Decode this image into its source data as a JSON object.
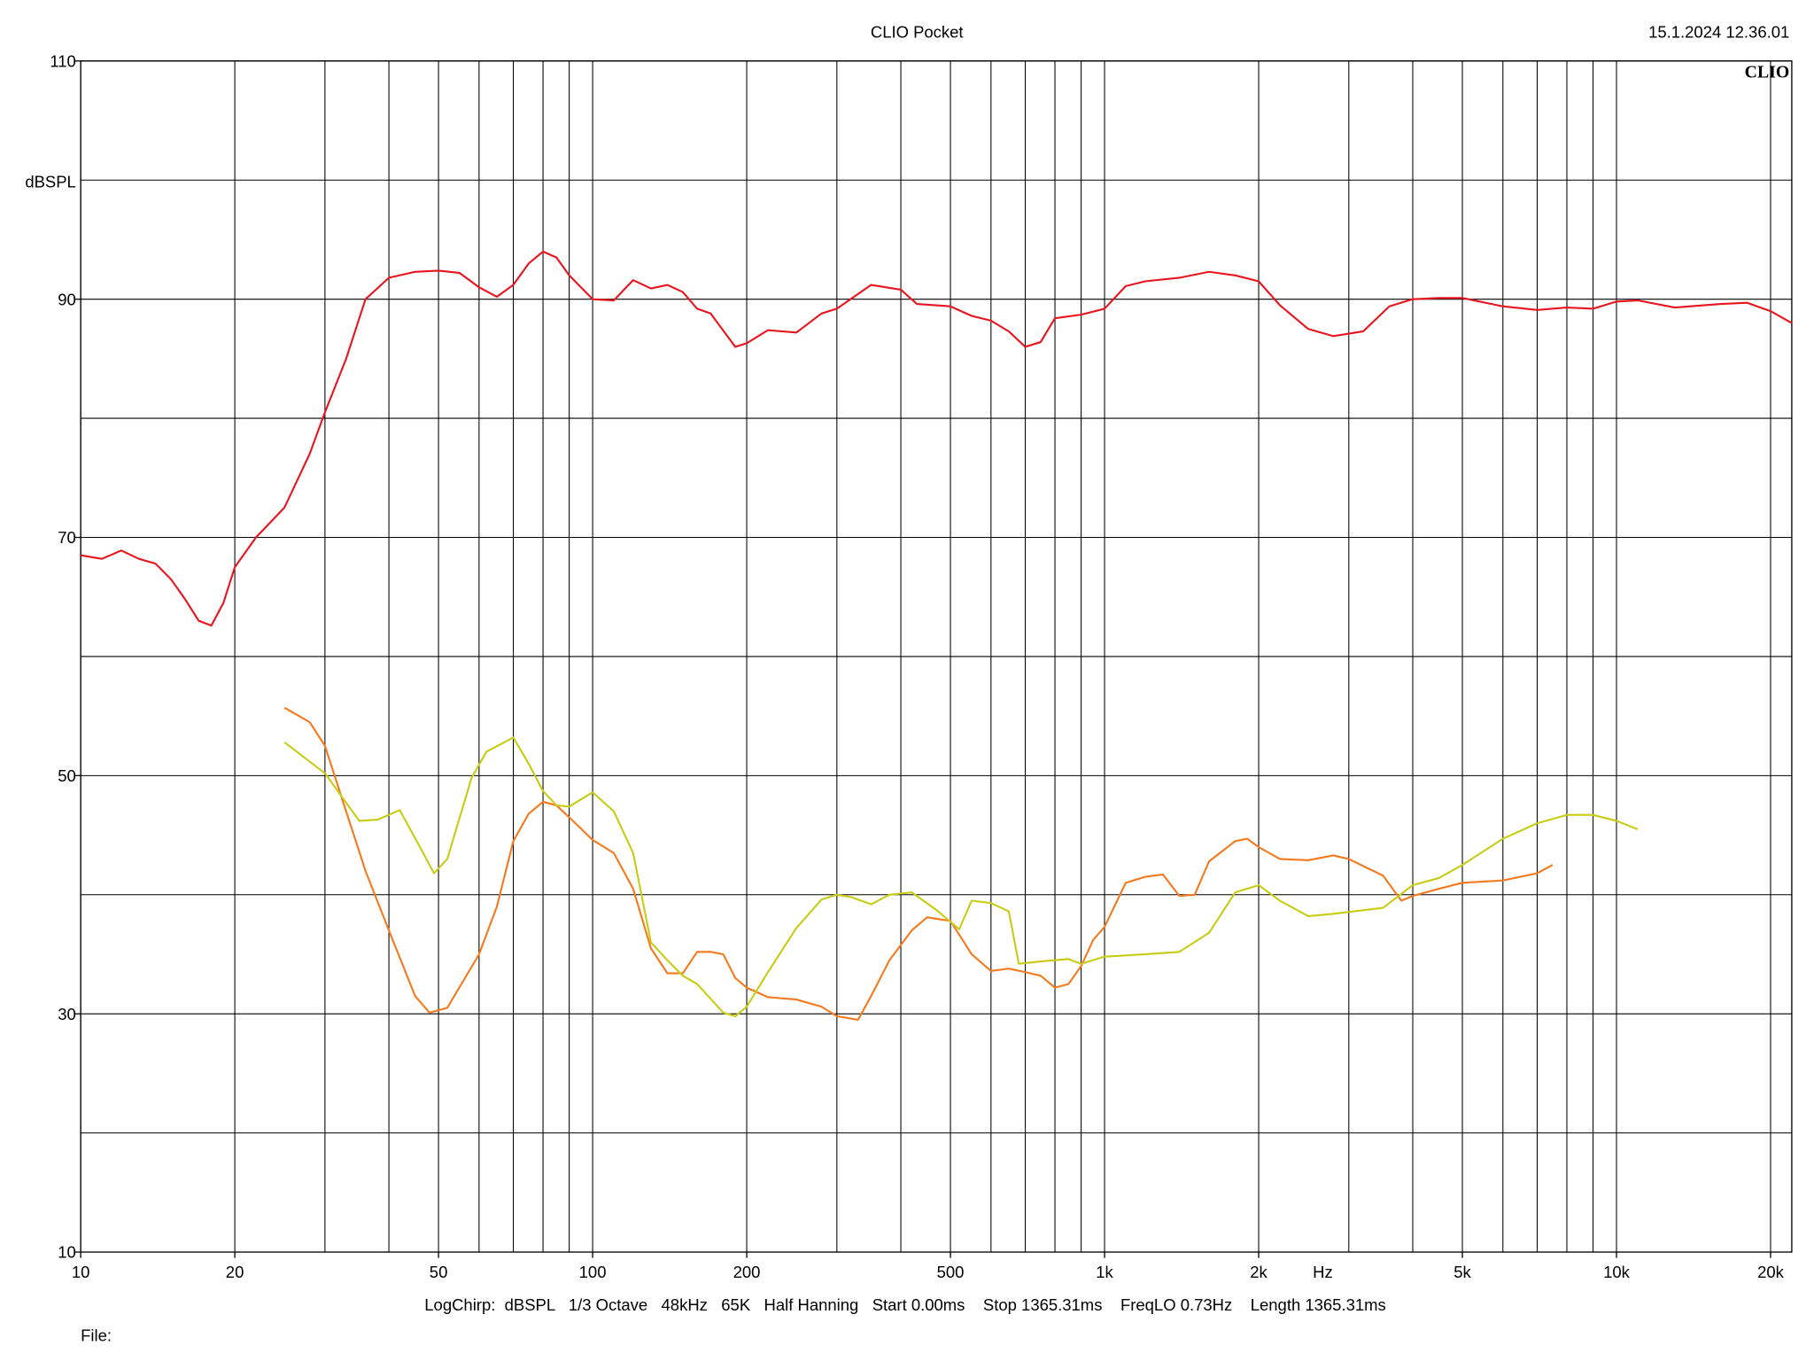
{
  "chart_data": {
    "type": "line",
    "title": "CLIO Pocket",
    "timestamp": "15.1.2024 12.36.01",
    "logo": "CLIO",
    "y_label": "dBSPL",
    "x_label": "Hz",
    "footer": "LogChirp:  dBSPL   1/3 Octave   48kHz   65K   Half Hanning   Start 0.00ms    Stop 1365.31ms    FreqLO 0.73Hz    Length 1365.31ms",
    "file_label": "File:",
    "log_x": true,
    "xlim": [
      10,
      22000
    ],
    "ylim": [
      10,
      110
    ],
    "xticks": [
      10,
      20,
      50,
      100,
      200,
      500,
      {
        "value": 1000,
        "label": "1k"
      },
      {
        "value": 2000,
        "label": "2k"
      },
      {
        "value": 5000,
        "label": "5k"
      },
      {
        "value": 10000,
        "label": "10k"
      },
      {
        "value": 20000,
        "label": "20k"
      }
    ],
    "yticks": [
      10,
      30,
      50,
      70,
      90,
      110
    ],
    "xgrid": [
      10,
      20,
      30,
      40,
      50,
      60,
      70,
      80,
      90,
      100,
      200,
      300,
      400,
      500,
      600,
      700,
      800,
      900,
      1000,
      2000,
      3000,
      4000,
      5000,
      6000,
      7000,
      8000,
      9000,
      10000,
      20000
    ],
    "ygrid": [
      10,
      20,
      30,
      40,
      50,
      60,
      70,
      80,
      90,
      100,
      110
    ],
    "series": [
      {
        "color": "#e8141e",
        "x": [
          10,
          11,
          12,
          13,
          14,
          15,
          16,
          17,
          18,
          19,
          20,
          22,
          25,
          28,
          30,
          33,
          36,
          40,
          45,
          50,
          55,
          60,
          65,
          70,
          75,
          80,
          85,
          90,
          100,
          110,
          120,
          130,
          140,
          150,
          160,
          170,
          190,
          200,
          220,
          250,
          280,
          300,
          350,
          400,
          430,
          500,
          550,
          600,
          650,
          700,
          750,
          800,
          900,
          1000,
          1100,
          1200,
          1400,
          1600,
          1800,
          2000,
          2200,
          2500,
          2800,
          3200,
          3600,
          4000,
          4500,
          5000,
          6000,
          7000,
          8000,
          9000,
          10000,
          11000,
          13000,
          16000,
          18000,
          20000,
          22000
        ],
        "values": [
          68.5,
          68.2,
          68.9,
          68.2,
          67.8,
          66.5,
          64.8,
          63.0,
          62.6,
          64.5,
          67.5,
          70,
          72.5,
          77,
          80.5,
          85,
          90,
          91.8,
          92.3,
          92.4,
          92.2,
          91,
          90.2,
          91.2,
          93,
          94,
          93.5,
          92,
          90,
          89.9,
          91.6,
          90.9,
          91.2,
          90.6,
          89.2,
          88.8,
          86,
          86.3,
          87.4,
          87.2,
          88.8,
          89.2,
          91.2,
          90.8,
          89.6,
          89.4,
          88.6,
          88.2,
          87.3,
          86,
          86.4,
          88.4,
          88.7,
          89.2,
          91.1,
          91.5,
          91.8,
          92.3,
          92,
          91.5,
          89.5,
          87.5,
          86.9,
          87.3,
          89.4,
          90.0,
          90.1,
          90.1,
          89.4,
          89.1,
          89.3,
          89.2,
          89.8,
          89.9,
          89.3,
          89.6,
          89.7,
          89.0,
          88.0
        ]
      },
      {
        "color": "#f57a1e",
        "x": [
          25,
          28,
          30,
          33,
          36,
          40,
          45,
          48,
          52,
          60,
          65,
          70,
          75,
          80,
          85,
          90,
          100,
          110,
          120,
          130,
          140,
          150,
          160,
          170,
          180,
          190,
          200,
          220,
          250,
          280,
          300,
          330,
          350,
          380,
          420,
          450,
          500,
          550,
          600,
          650,
          700,
          750,
          800,
          850,
          900,
          950,
          1000,
          1100,
          1200,
          1300,
          1400,
          1500,
          1600,
          1800,
          1900,
          2000,
          2200,
          2500,
          2800,
          3000,
          3500,
          3800,
          4000,
          4500,
          5000,
          6000,
          7000,
          7500
        ],
        "values": [
          55.7,
          54.5,
          52.5,
          47,
          42,
          37,
          31.5,
          30.1,
          30.5,
          35,
          39,
          44.5,
          46.8,
          47.8,
          47.5,
          46.5,
          44.6,
          43.5,
          40.5,
          35.5,
          33.4,
          33.4,
          35.2,
          35.2,
          35.0,
          33,
          32.2,
          31.4,
          31.2,
          30.6,
          29.8,
          29.5,
          31.5,
          34.5,
          37,
          38.1,
          37.8,
          35,
          33.6,
          33.8,
          33.5,
          33.2,
          32.2,
          32.5,
          34,
          36.2,
          37.3,
          41,
          41.5,
          41.7,
          39.9,
          40,
          42.8,
          44.5,
          44.7,
          44,
          43,
          42.9,
          43.3,
          43,
          41.6,
          39.5,
          39.9,
          40.5,
          41,
          41.2,
          41.8,
          42.5
        ]
      },
      {
        "color": "#c8cc14",
        "x": [
          25,
          30,
          35,
          38,
          42,
          46,
          49,
          52,
          58,
          62,
          70,
          75,
          80,
          85,
          90,
          100,
          110,
          120,
          130,
          140,
          150,
          160,
          180,
          190,
          200,
          220,
          250,
          280,
          300,
          320,
          350,
          380,
          420,
          470,
          520,
          550,
          600,
          650,
          680,
          750,
          850,
          900,
          1000,
          1200,
          1400,
          1600,
          1800,
          2000,
          2200,
          2500,
          2800,
          3500,
          4000,
          4500,
          5000,
          6000,
          7000,
          8000,
          9000,
          10000,
          11000
        ],
        "values": [
          52.8,
          50.2,
          46.2,
          46.3,
          47.1,
          44,
          41.8,
          43,
          49.8,
          52,
          53.2,
          51,
          48.7,
          47.5,
          47.4,
          48.6,
          47,
          43.5,
          36,
          34.5,
          33.2,
          32.5,
          30.1,
          29.8,
          30.6,
          33.5,
          37.2,
          39.6,
          40,
          39.8,
          39.2,
          40,
          40.2,
          38.7,
          37.1,
          39.5,
          39.3,
          38.6,
          34.2,
          34.4,
          34.6,
          34.2,
          34.8,
          35,
          35.2,
          36.8,
          40.2,
          40.8,
          39.5,
          38.2,
          38.4,
          38.9,
          40.8,
          41.4,
          42.5,
          44.7,
          46,
          46.7,
          46.7,
          46.2,
          45.5
        ]
      }
    ]
  }
}
